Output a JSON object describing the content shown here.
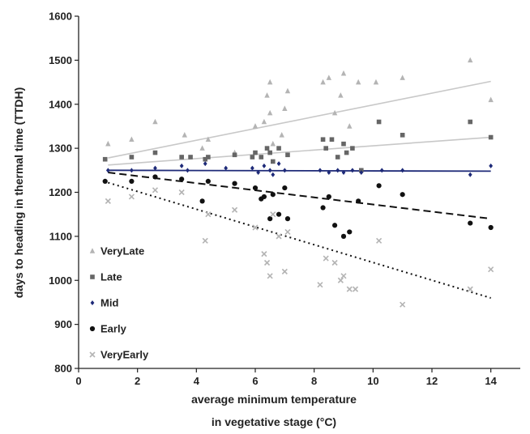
{
  "chart_data": {
    "type": "scatter",
    "xlabel_line1": "average minimum temperature",
    "xlabel_line2": "in vegetative stage (°C)",
    "ylabel": "days to heading in thermal time (TTDH)",
    "xlim": [
      0,
      15
    ],
    "ylim": [
      800,
      1600
    ],
    "xticks": [
      "0",
      "2",
      "4",
      "6",
      "8",
      "10",
      "12",
      "14"
    ],
    "yticks": [
      "800",
      "900",
      "1000",
      "1100",
      "1200",
      "1300",
      "1400",
      "1500",
      "1600"
    ],
    "grid": false,
    "legend_position": "bottom-left",
    "series": [
      {
        "name": "VeryLate",
        "marker": "triangle",
        "color": "#b4b4b4",
        "trend": {
          "x": [
            1,
            14
          ],
          "y": [
            1278,
            1452
          ],
          "style": "solid",
          "color": "#c8c8c8"
        },
        "points": [
          [
            1.0,
            1310
          ],
          [
            1.8,
            1320
          ],
          [
            2.6,
            1360
          ],
          [
            3.6,
            1330
          ],
          [
            4.2,
            1300
          ],
          [
            4.4,
            1320
          ],
          [
            5.3,
            1290
          ],
          [
            6.0,
            1350
          ],
          [
            6.3,
            1360
          ],
          [
            6.4,
            1420
          ],
          [
            6.5,
            1450
          ],
          [
            6.5,
            1380
          ],
          [
            6.6,
            1310
          ],
          [
            6.9,
            1330
          ],
          [
            7.0,
            1390
          ],
          [
            7.1,
            1430
          ],
          [
            8.3,
            1450
          ],
          [
            8.5,
            1460
          ],
          [
            8.7,
            1380
          ],
          [
            8.9,
            1420
          ],
          [
            9.0,
            1470
          ],
          [
            9.2,
            1350
          ],
          [
            9.5,
            1450
          ],
          [
            10.1,
            1450
          ],
          [
            11.0,
            1460
          ],
          [
            13.3,
            1500
          ],
          [
            14.0,
            1410
          ]
        ]
      },
      {
        "name": "Late",
        "marker": "square",
        "color": "#666666",
        "trend": {
          "x": [
            1,
            14
          ],
          "y": [
            1262,
            1325
          ],
          "style": "solid",
          "color": "#c8c8c8"
        },
        "points": [
          [
            0.9,
            1275
          ],
          [
            1.8,
            1280
          ],
          [
            2.6,
            1290
          ],
          [
            3.5,
            1280
          ],
          [
            3.8,
            1280
          ],
          [
            4.3,
            1275
          ],
          [
            4.4,
            1280
          ],
          [
            5.3,
            1285
          ],
          [
            5.9,
            1280
          ],
          [
            6.0,
            1290
          ],
          [
            6.2,
            1280
          ],
          [
            6.4,
            1300
          ],
          [
            6.5,
            1290
          ],
          [
            6.6,
            1270
          ],
          [
            6.8,
            1300
          ],
          [
            7.1,
            1285
          ],
          [
            8.3,
            1320
          ],
          [
            8.4,
            1300
          ],
          [
            8.6,
            1320
          ],
          [
            8.8,
            1280
          ],
          [
            9.0,
            1310
          ],
          [
            9.1,
            1290
          ],
          [
            9.3,
            1300
          ],
          [
            9.6,
            1250
          ],
          [
            10.2,
            1360
          ],
          [
            11.0,
            1330
          ],
          [
            13.3,
            1360
          ],
          [
            14.0,
            1325
          ]
        ]
      },
      {
        "name": "Mid",
        "marker": "diamond",
        "color": "#1e2a78",
        "trend": {
          "x": [
            1,
            14
          ],
          "y": [
            1250,
            1248
          ],
          "style": "solid",
          "color": "#1e2a78"
        },
        "points": [
          [
            1.0,
            1250
          ],
          [
            1.8,
            1250
          ],
          [
            2.6,
            1255
          ],
          [
            3.5,
            1260
          ],
          [
            3.7,
            1250
          ],
          [
            4.3,
            1265
          ],
          [
            5.0,
            1255
          ],
          [
            5.9,
            1255
          ],
          [
            6.1,
            1245
          ],
          [
            6.3,
            1260
          ],
          [
            6.5,
            1250
          ],
          [
            6.6,
            1240
          ],
          [
            6.8,
            1265
          ],
          [
            7.0,
            1250
          ],
          [
            8.2,
            1250
          ],
          [
            8.5,
            1245
          ],
          [
            8.8,
            1250
          ],
          [
            9.0,
            1245
          ],
          [
            9.3,
            1250
          ],
          [
            9.6,
            1245
          ],
          [
            10.3,
            1250
          ],
          [
            11.0,
            1250
          ],
          [
            13.3,
            1240
          ],
          [
            14.0,
            1260
          ]
        ]
      },
      {
        "name": "Early",
        "marker": "circle",
        "color": "#111111",
        "trend": {
          "x": [
            1,
            14
          ],
          "y": [
            1245,
            1140
          ],
          "style": "dashed",
          "color": "#111111"
        },
        "points": [
          [
            0.9,
            1225
          ],
          [
            1.8,
            1225
          ],
          [
            2.6,
            1235
          ],
          [
            3.5,
            1230
          ],
          [
            4.2,
            1180
          ],
          [
            4.4,
            1225
          ],
          [
            5.3,
            1220
          ],
          [
            6.0,
            1210
          ],
          [
            6.2,
            1185
          ],
          [
            6.3,
            1190
          ],
          [
            6.5,
            1140
          ],
          [
            6.6,
            1195
          ],
          [
            6.8,
            1150
          ],
          [
            7.0,
            1210
          ],
          [
            7.1,
            1140
          ],
          [
            8.3,
            1165
          ],
          [
            8.5,
            1190
          ],
          [
            8.7,
            1125
          ],
          [
            9.0,
            1100
          ],
          [
            9.2,
            1110
          ],
          [
            9.5,
            1180
          ],
          [
            10.2,
            1215
          ],
          [
            11.0,
            1195
          ],
          [
            13.3,
            1130
          ],
          [
            14.0,
            1120
          ]
        ]
      },
      {
        "name": "VeryEarly",
        "marker": "x",
        "color": "#b4b4b4",
        "trend": {
          "x": [
            1,
            14
          ],
          "y": [
            1222,
            960
          ],
          "style": "dotted",
          "color": "#111111"
        },
        "points": [
          [
            1.0,
            1180
          ],
          [
            1.8,
            1190
          ],
          [
            2.6,
            1205
          ],
          [
            3.5,
            1200
          ],
          [
            4.3,
            1090
          ],
          [
            4.4,
            1150
          ],
          [
            5.3,
            1160
          ],
          [
            6.0,
            1120
          ],
          [
            6.3,
            1060
          ],
          [
            6.4,
            1040
          ],
          [
            6.5,
            1010
          ],
          [
            6.6,
            1150
          ],
          [
            6.8,
            1100
          ],
          [
            7.0,
            1020
          ],
          [
            7.1,
            1110
          ],
          [
            8.2,
            990
          ],
          [
            8.4,
            1050
          ],
          [
            8.7,
            1040
          ],
          [
            8.9,
            1000
          ],
          [
            9.0,
            1010
          ],
          [
            9.2,
            980
          ],
          [
            9.4,
            980
          ],
          [
            10.2,
            1090
          ],
          [
            11.0,
            945
          ],
          [
            13.3,
            980
          ],
          [
            14.0,
            1025
          ]
        ]
      }
    ]
  }
}
